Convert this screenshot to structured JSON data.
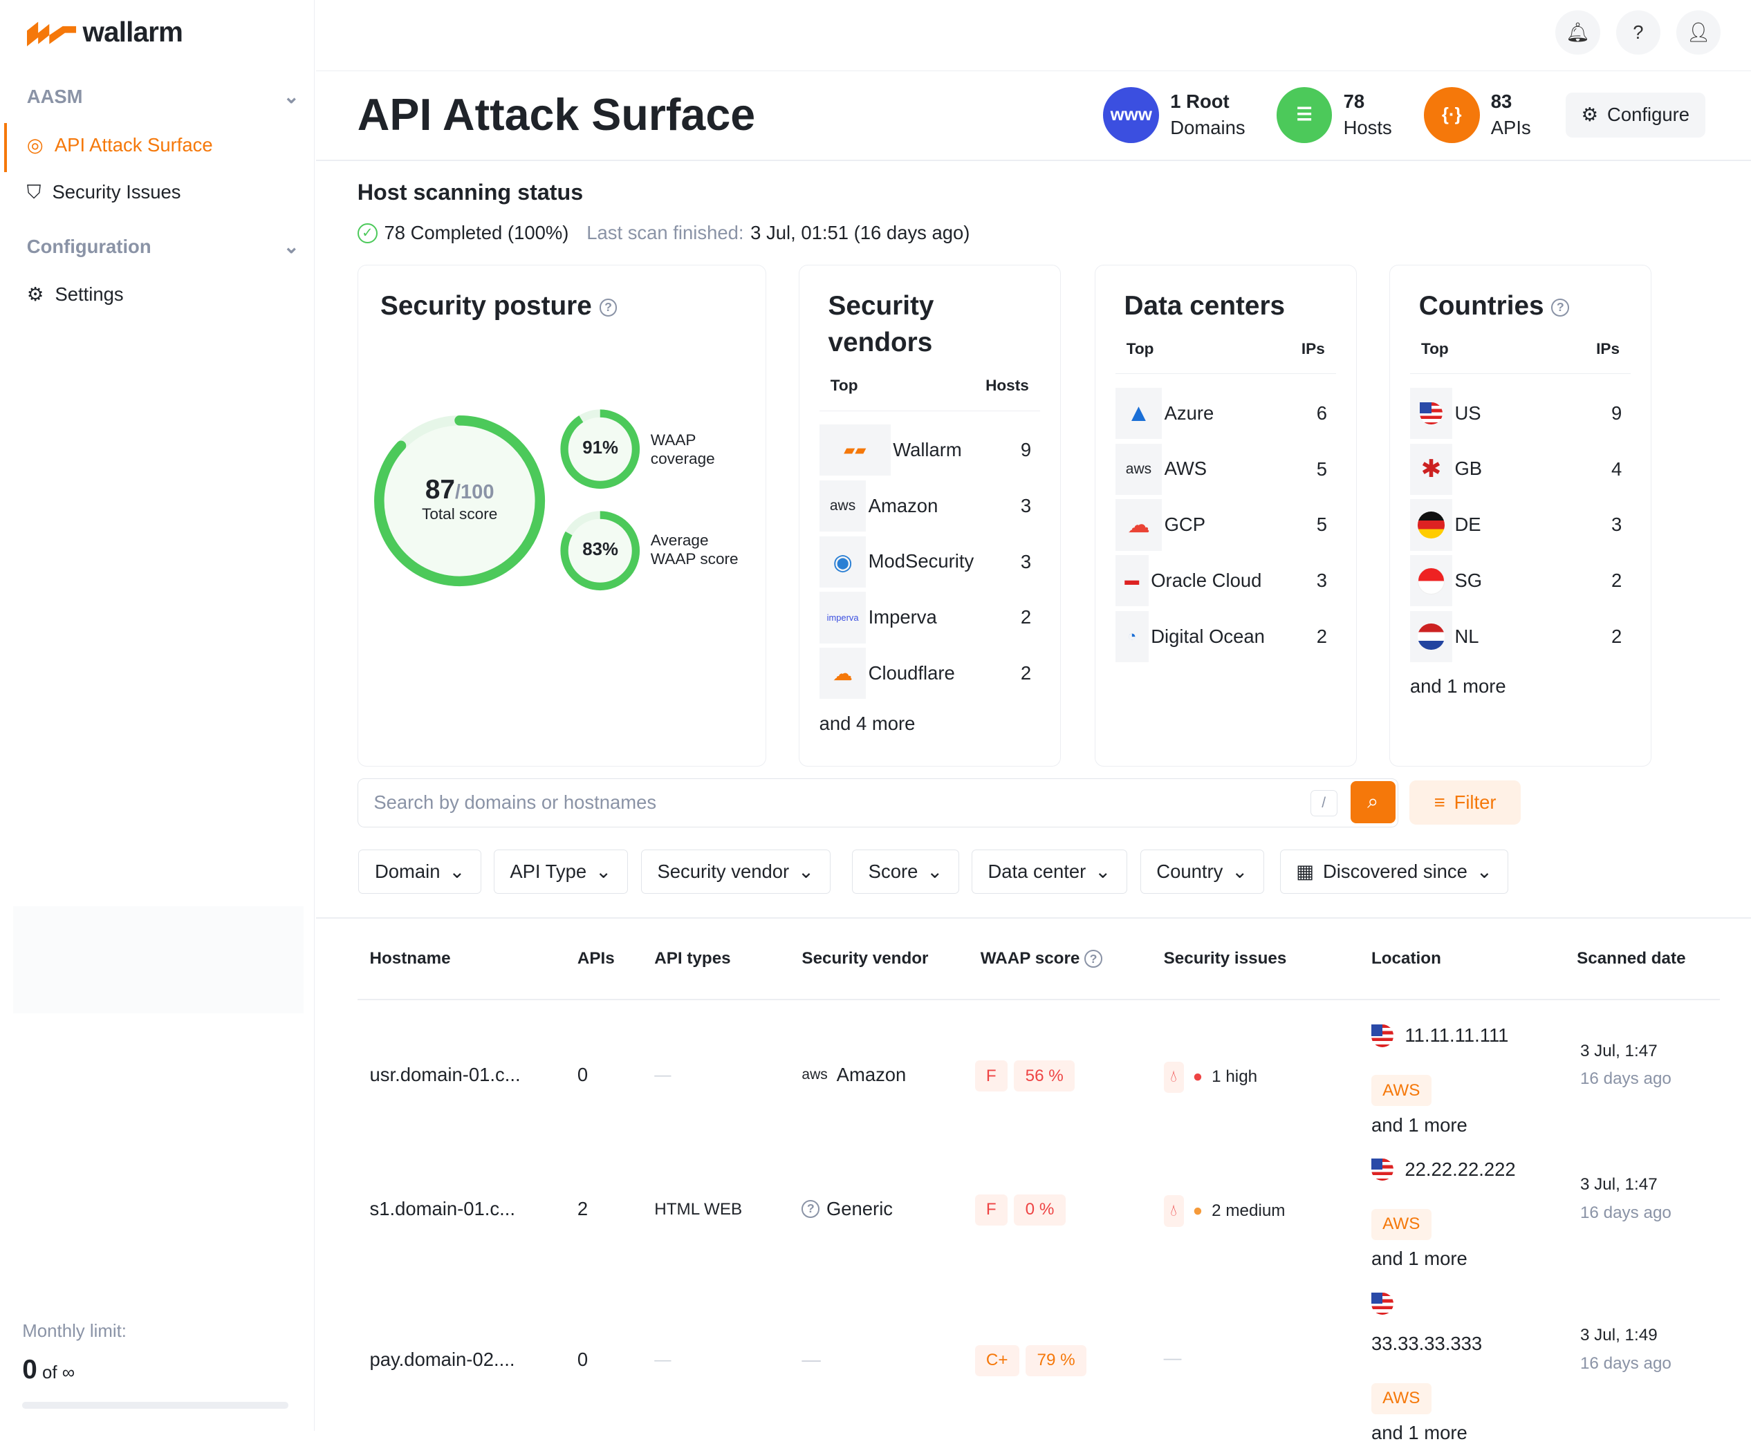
{
  "brand": {
    "name": "wallarm",
    "accent": "#f5780a"
  },
  "sidebar": {
    "sections": [
      {
        "label": "AASM"
      },
      {
        "label": "Configuration"
      }
    ],
    "items": [
      {
        "label": "API Attack Surface",
        "icon": "target-icon",
        "active": true
      },
      {
        "label": "Security Issues",
        "icon": "shield-icon"
      },
      {
        "label": "Settings",
        "icon": "gear-icon"
      }
    ],
    "limit_label": "Monthly limit:",
    "limit_value": "0",
    "limit_of": "of ∞"
  },
  "header": {
    "title": "API Attack Surface",
    "stats": [
      {
        "value": "1 Root",
        "label": "Domains",
        "color": "#3b4fe0",
        "icon": "www-icon"
      },
      {
        "value": "78",
        "label": "Hosts",
        "color": "#4cc95a",
        "icon": "server-icon"
      },
      {
        "value": "83",
        "label": "APIs",
        "color": "#f5780a",
        "icon": "api-icon"
      }
    ],
    "configure": "Configure"
  },
  "scan": {
    "title": "Host scanning status",
    "completed": "78 Completed (100%)",
    "last_label": "Last scan finished:",
    "last_value": "3 Jul, 01:51 (16 days ago)"
  },
  "posture": {
    "title": "Security posture",
    "score": "87",
    "max": "/100",
    "score_label": "Total score",
    "score_pct": 87,
    "waap_cov": "91%",
    "waap_cov_label": "WAAP coverage",
    "waap_cov_pct": 91,
    "waap_score": "83%",
    "waap_score_label": "Average WAAP score",
    "waap_score_pct": 83
  },
  "vendors": {
    "title": "Security vendors",
    "col1": "Top",
    "col2": "Hosts",
    "rows": [
      {
        "name": "Wallarm",
        "v": "9"
      },
      {
        "name": "Amazon",
        "v": "3"
      },
      {
        "name": "ModSecurity",
        "v": "3"
      },
      {
        "name": "Imperva",
        "v": "2"
      },
      {
        "name": "Cloudflare",
        "v": "2"
      }
    ],
    "more": "and 4 more"
  },
  "datacenters": {
    "title": "Data centers",
    "col1": "Top",
    "col2": "IPs",
    "rows": [
      {
        "name": "Azure",
        "v": "6"
      },
      {
        "name": "AWS",
        "v": "5"
      },
      {
        "name": "GCP",
        "v": "5"
      },
      {
        "name": "Oracle Cloud",
        "v": "3"
      },
      {
        "name": "Digital Ocean",
        "v": "2"
      }
    ]
  },
  "countries": {
    "title": "Countries",
    "col1": "Top",
    "col2": "IPs",
    "rows": [
      {
        "name": "US",
        "v": "9"
      },
      {
        "name": "GB",
        "v": "4"
      },
      {
        "name": "DE",
        "v": "3"
      },
      {
        "name": "SG",
        "v": "2"
      },
      {
        "name": "NL",
        "v": "2"
      }
    ],
    "more": "and 1 more"
  },
  "search": {
    "placeholder": "Search by domains or hostnames",
    "shortcut": "/",
    "filter": "Filter"
  },
  "filters": [
    "Domain",
    "API Type",
    "Security vendor",
    "Score",
    "Data center",
    "Country",
    "Discovered since"
  ],
  "table": {
    "headers": [
      "Hostname",
      "APIs",
      "API types",
      "Security vendor",
      "WAAP score",
      "Security issues",
      "Location",
      "Scanned date"
    ],
    "rows": [
      {
        "host": "usr.domain-01.c...",
        "apis": "0",
        "types": "—",
        "vendor": "Amazon",
        "grade": "F",
        "score": "56 %",
        "issues": "1 high",
        "ip": "11.11.11.111",
        "dc": "AWS",
        "more": "and 1 more",
        "date": "3 Jul, 1:47",
        "ago": "16 days ago"
      },
      {
        "host": "s1.domain-01.c...",
        "apis": "2",
        "types": "HTML WEB",
        "vendor": "Generic",
        "grade": "F",
        "score": "0 %",
        "issues": "2 medium",
        "ip": "22.22.22.222",
        "dc": "AWS",
        "more": "and 1 more",
        "date": "3 Jul, 1:47",
        "ago": "16 days ago"
      },
      {
        "host": "pay.domain-02....",
        "apis": "0",
        "types": "—",
        "vendor": "—",
        "grade": "C+",
        "score": "79 %",
        "issues": "—",
        "ip": "33.33.33.333",
        "dc": "AWS",
        "more": "and 1 more",
        "date": "3 Jul, 1:49",
        "ago": "16 days ago"
      }
    ]
  }
}
